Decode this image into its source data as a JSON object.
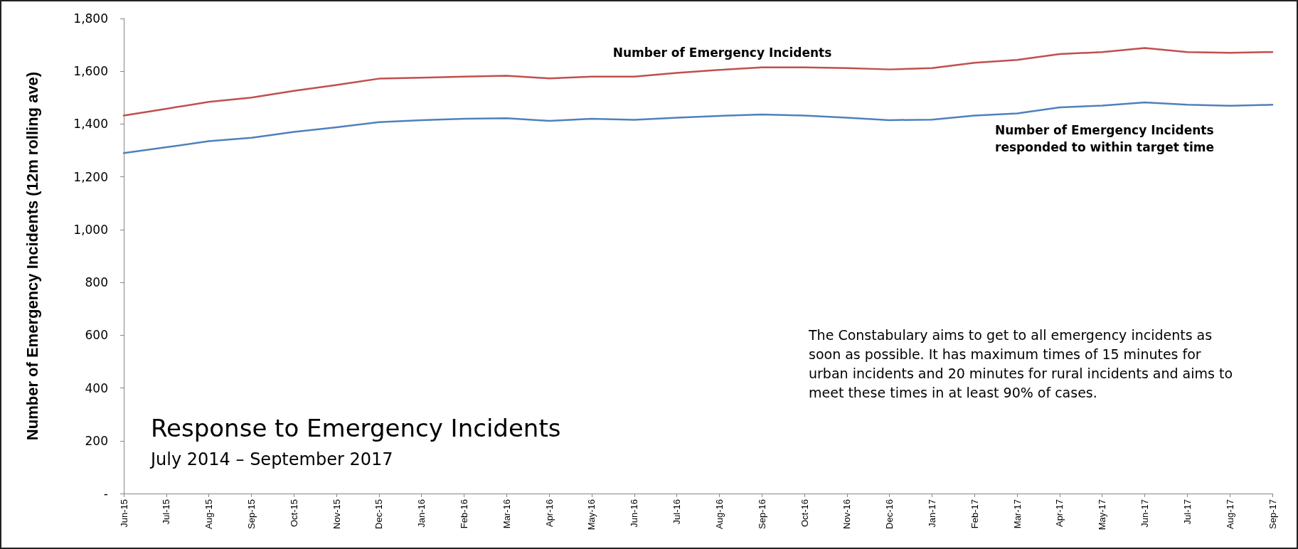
{
  "chart_data": {
    "type": "line",
    "title": "Response to Emergency Incidents",
    "subtitle": "July 2014 – September 2017",
    "ylabel": "Number of Emergency Incidents (12m rolling ave)",
    "annotations": [
      "The Constabulary aims to get to all emergency incidents as soon as possible. It has maximum times of 15 minutes for urban incidents and 20 minutes for rural incidents and aims to meet these times in at least 90% of cases."
    ],
    "categories": [
      "Jun-15",
      "Jul-15",
      "Aug-15",
      "Sep-15",
      "Oct-15",
      "Nov-15",
      "Dec-15",
      "Jan-16",
      "Feb-16",
      "Mar-16",
      "Apr-16",
      "May-16",
      "Jun-16",
      "Jul-16",
      "Aug-16",
      "Sep-16",
      "Oct-16",
      "Nov-16",
      "Dec-16",
      "Jan-17",
      "Feb-17",
      "Mar-17",
      "Apr-17",
      "May-17",
      "Jun-17",
      "Jul-17",
      "Aug-17",
      "Sep-17"
    ],
    "series": [
      {
        "name": "Number of Emergency Incidents",
        "color": "#c0504d",
        "values": [
          1432,
          1458,
          1484,
          1500,
          1526,
          1548,
          1572,
          1576,
          1580,
          1583,
          1573,
          1580,
          1580,
          1594,
          1605,
          1615,
          1615,
          1612,
          1607,
          1612,
          1632,
          1643,
          1665,
          1673,
          1688,
          1673,
          1670,
          1673
        ]
      },
      {
        "name": "Number of Emergency Incidents responded to within target time",
        "color": "#4f81bd",
        "values": [
          1290,
          1312,
          1335,
          1348,
          1370,
          1388,
          1407,
          1415,
          1420,
          1422,
          1412,
          1420,
          1416,
          1424,
          1431,
          1436,
          1432,
          1424,
          1415,
          1417,
          1432,
          1440,
          1463,
          1470,
          1482,
          1473,
          1469,
          1473
        ]
      }
    ],
    "ylim": [
      0,
      1800
    ],
    "yticks": [
      {
        "value": 0,
        "label": "-"
      },
      {
        "value": 200,
        "label": "200"
      },
      {
        "value": 400,
        "label": "400"
      },
      {
        "value": 600,
        "label": "600"
      },
      {
        "value": 800,
        "label": "800"
      },
      {
        "value": 1000,
        "label": "1,000"
      },
      {
        "value": 1200,
        "label": "1,200"
      },
      {
        "value": 1400,
        "label": "1,400"
      },
      {
        "value": 1600,
        "label": "1,600"
      },
      {
        "value": 1800,
        "label": "1,800"
      }
    ],
    "grid": false,
    "legend": false,
    "marker": "none",
    "line_style": "solid"
  }
}
